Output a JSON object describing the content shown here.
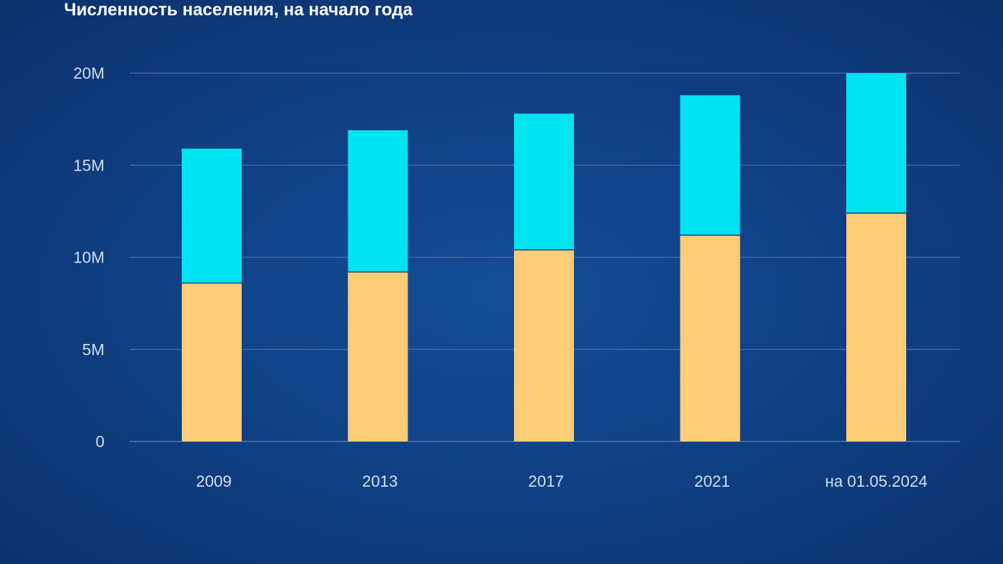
{
  "chart_data": {
    "type": "bar",
    "stacked": true,
    "title": "Численность населения, на начало года",
    "categories": [
      "2009",
      "2013",
      "2017",
      "2021",
      "на 01.05.2024"
    ],
    "series": [
      {
        "values": [
          8.6,
          9.2,
          10.4,
          11.2,
          12.4
        ],
        "color": "#ffcd78"
      },
      {
        "values": [
          7.3,
          7.7,
          7.4,
          7.6,
          7.6
        ],
        "color": "#00e3f0"
      }
    ],
    "yticks": [
      {
        "value": 0,
        "label": "0"
      },
      {
        "value": 5,
        "label": "5M"
      },
      {
        "value": 10,
        "label": "10M"
      },
      {
        "value": 15,
        "label": "15M"
      },
      {
        "value": 20,
        "label": "20M"
      }
    ],
    "ylim": [
      0,
      20
    ],
    "grid": true,
    "gridColor": "#3d67a6",
    "xlabel": "",
    "ylabel": ""
  }
}
